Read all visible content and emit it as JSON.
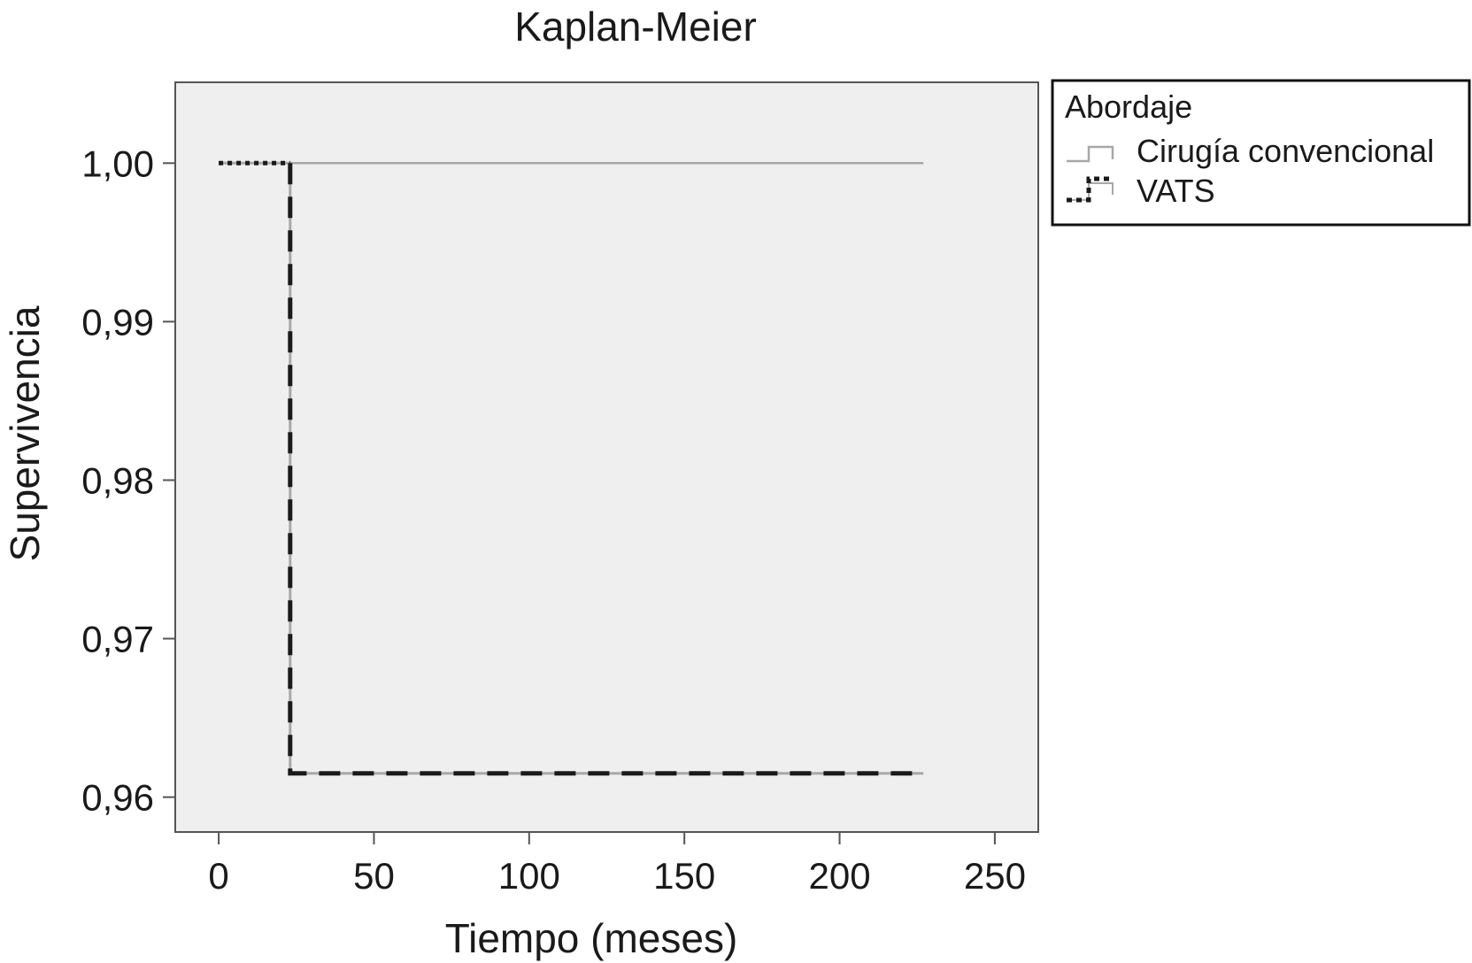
{
  "chart_data": {
    "type": "line",
    "title": "Kaplan-Meier",
    "xlabel": "Tiempo (meses)",
    "ylabel": "Supervivencia",
    "xlim": [
      -14,
      264
    ],
    "ylim": [
      0.9578,
      1.0051
    ],
    "x_ticks": [
      0,
      50,
      100,
      150,
      200,
      250
    ],
    "x_tick_labels": [
      "0",
      "50",
      "100",
      "150",
      "200",
      "250"
    ],
    "y_ticks": [
      1.0,
      0.99,
      0.98,
      0.97,
      0.96
    ],
    "y_tick_labels": [
      "1,00",
      "0,99",
      "0,98",
      "0,97",
      "0,96"
    ],
    "grid": false,
    "background": "#efefef",
    "legend": {
      "title": "Abordaje",
      "placement": "right-top",
      "entries": [
        "Cirugía convencional",
        "VATS"
      ]
    },
    "series": [
      {
        "name": "Cirugía convencional",
        "color": "#a8a8a8",
        "style": "solid-step",
        "points": [
          [
            0,
            1.0
          ],
          [
            227,
            1.0
          ]
        ]
      },
      {
        "name": "VATS",
        "color": "#1a1a1a",
        "style": "dashed-step",
        "points": [
          [
            0,
            1.0
          ],
          [
            23,
            1.0
          ],
          [
            23,
            0.9615
          ],
          [
            227,
            0.9615
          ]
        ]
      }
    ]
  }
}
